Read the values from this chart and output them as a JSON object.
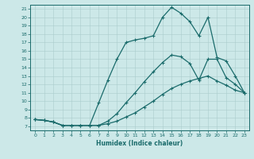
{
  "xlabel": "Humidex (Indice chaleur)",
  "bg_color": "#cce8e8",
  "line_color": "#1a6b6b",
  "grid_color": "#aacccc",
  "xlim": [
    -0.5,
    23.5
  ],
  "ylim": [
    6.5,
    21.5
  ],
  "xticks": [
    0,
    1,
    2,
    3,
    4,
    5,
    6,
    7,
    8,
    9,
    10,
    11,
    12,
    13,
    14,
    15,
    16,
    17,
    18,
    19,
    20,
    21,
    22,
    23
  ],
  "yticks": [
    7,
    8,
    9,
    10,
    11,
    12,
    13,
    14,
    15,
    16,
    17,
    18,
    19,
    20,
    21
  ],
  "line1_x": [
    0,
    1,
    2,
    3,
    4,
    5,
    6,
    7,
    8,
    9,
    10,
    11,
    12,
    13,
    14,
    15,
    16,
    17,
    18,
    19,
    20,
    21,
    22,
    23
  ],
  "line1_y": [
    7.8,
    7.7,
    7.5,
    7.1,
    7.1,
    7.1,
    7.1,
    7.1,
    7.3,
    7.6,
    8.1,
    8.6,
    9.3,
    10.0,
    10.8,
    11.5,
    12.0,
    12.4,
    12.7,
    13.0,
    12.4,
    11.9,
    11.3,
    11.0
  ],
  "line2_x": [
    0,
    1,
    2,
    3,
    4,
    5,
    6,
    7,
    8,
    9,
    10,
    11,
    12,
    13,
    14,
    15,
    16,
    17,
    18,
    19,
    20,
    21,
    22,
    23
  ],
  "line2_y": [
    7.8,
    7.7,
    7.5,
    7.1,
    7.1,
    7.1,
    7.1,
    7.1,
    7.6,
    8.5,
    9.8,
    11.0,
    12.3,
    13.5,
    14.6,
    15.5,
    15.3,
    14.5,
    12.5,
    15.0,
    15.0,
    12.8,
    12.0,
    11.0
  ],
  "line3_x": [
    0,
    1,
    2,
    3,
    4,
    5,
    6,
    7,
    8,
    9,
    10,
    11,
    12,
    13,
    14,
    15,
    16,
    17,
    18,
    19,
    20,
    21,
    22,
    23
  ],
  "line3_y": [
    7.8,
    7.7,
    7.5,
    7.1,
    7.1,
    7.1,
    7.1,
    9.8,
    12.5,
    15.0,
    17.0,
    17.3,
    17.5,
    17.8,
    20.0,
    21.2,
    20.5,
    19.5,
    17.8,
    20.0,
    15.2,
    14.8,
    13.0,
    11.0
  ],
  "marker": "+",
  "markersize": 3,
  "linewidth": 0.9,
  "tick_fontsize": 4.5,
  "xlabel_fontsize": 5.5
}
